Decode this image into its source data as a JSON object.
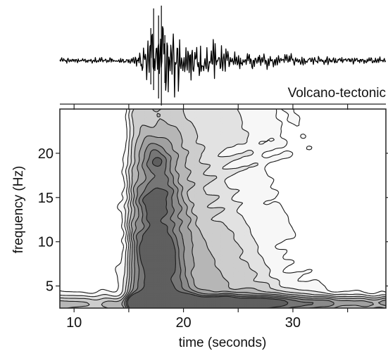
{
  "chart_data": {
    "type": "heatmap",
    "title": "",
    "annotation": "Volcano-tectonic",
    "xlabel": "time (seconds)",
    "ylabel": "frequency (Hz)",
    "xlim": [
      8.7,
      38.5
    ],
    "ylim": [
      2.5,
      25
    ],
    "x_ticks": [
      10,
      20,
      30
    ],
    "y_ticks": [
      5,
      10,
      15,
      20
    ],
    "grid": false,
    "contour_levels": 8,
    "colors": {
      "fills": [
        "#f7f7f7",
        "#e2e2e2",
        "#cdcdcd",
        "#b6b6b6",
        "#a0a0a0",
        "#8b8b8b",
        "#767676",
        "#5f5f5f"
      ],
      "line": "#1a1a1a",
      "axis": "#222222",
      "waveform": "#000000"
    },
    "waveform": {
      "onset_s": 15.2,
      "peak_s": 17.4,
      "noise_amplitude": 0.06,
      "peak_amplitude": 1.0,
      "decay_s": 4.5
    },
    "energy_peaks": [
      {
        "t": 17.6,
        "f": 9.2,
        "relative_strength": 1.0
      },
      {
        "t": 17.4,
        "f": 14.8,
        "relative_strength": 0.8
      },
      {
        "t": 17.5,
        "f": 19.3,
        "relative_strength": 0.75
      },
      {
        "t": 17.8,
        "f": 3.2,
        "relative_strength": 0.9
      }
    ]
  }
}
